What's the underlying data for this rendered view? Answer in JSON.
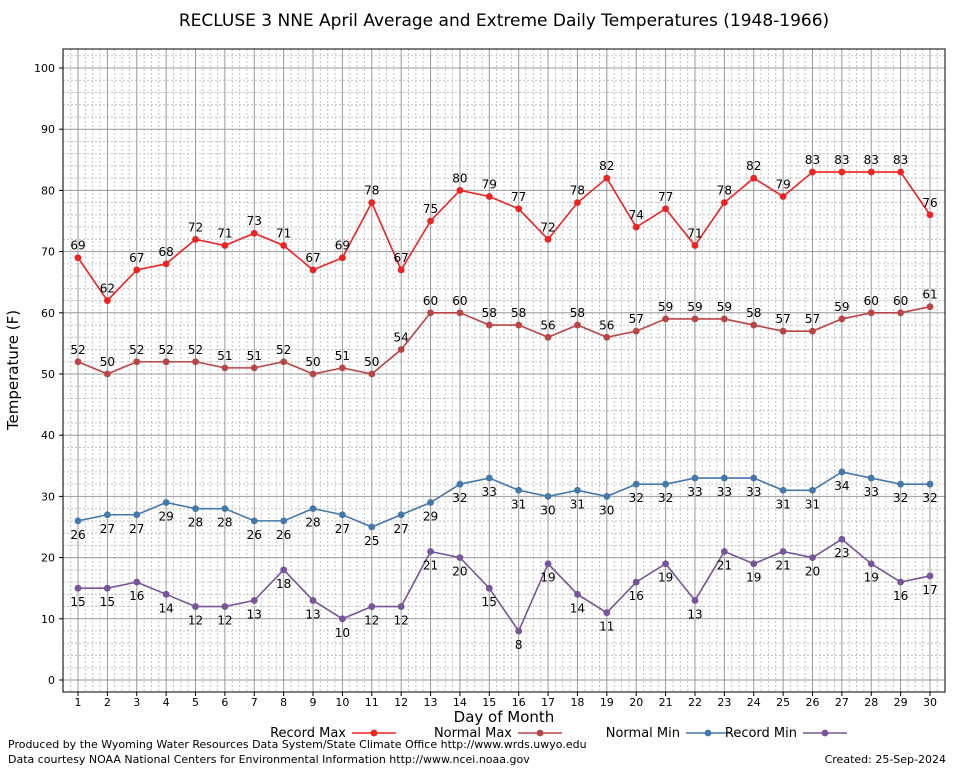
{
  "chart_data": {
    "type": "line",
    "title": "RECLUSE 3 NNE April Average and Extreme Daily Temperatures (1948-1966)",
    "xlabel": "Day of Month",
    "ylabel": "Temperature (F)",
    "ylim": [
      0,
      100
    ],
    "yticks": [
      0,
      10,
      20,
      30,
      40,
      50,
      60,
      70,
      80,
      90,
      100
    ],
    "x": [
      1,
      2,
      3,
      4,
      5,
      6,
      7,
      8,
      9,
      10,
      11,
      12,
      13,
      14,
      15,
      16,
      17,
      18,
      19,
      20,
      21,
      22,
      23,
      24,
      25,
      26,
      27,
      28,
      29,
      30
    ],
    "grid": true,
    "legend_position": "bottom",
    "series": [
      {
        "name": "Record Max",
        "color": "#ee2222",
        "values": [
          69,
          62,
          67,
          68,
          72,
          71,
          73,
          71,
          67,
          69,
          78,
          67,
          75,
          80,
          79,
          77,
          72,
          78,
          82,
          74,
          77,
          71,
          78,
          82,
          79,
          83,
          83,
          83,
          83,
          76
        ]
      },
      {
        "name": "Normal Max",
        "color": "#bb4444",
        "values": [
          52,
          50,
          52,
          52,
          52,
          51,
          51,
          52,
          50,
          51,
          50,
          54,
          60,
          60,
          58,
          58,
          56,
          58,
          56,
          57,
          59,
          59,
          59,
          58,
          57,
          57,
          59,
          60,
          60,
          61
        ]
      },
      {
        "name": "Normal Min",
        "color": "#4477aa",
        "values": [
          26,
          27,
          27,
          29,
          28,
          28,
          26,
          26,
          28,
          27,
          25,
          27,
          29,
          32,
          33,
          31,
          30,
          31,
          30,
          32,
          32,
          33,
          33,
          33,
          31,
          31,
          34,
          33,
          32,
          32
        ]
      },
      {
        "name": "Record Min",
        "color": "#775599",
        "values": [
          15,
          15,
          16,
          14,
          12,
          12,
          13,
          18,
          13,
          10,
          12,
          12,
          21,
          20,
          15,
          8,
          19,
          14,
          11,
          16,
          19,
          13,
          21,
          19,
          21,
          20,
          23,
          19,
          16,
          17
        ]
      }
    ]
  },
  "footer": {
    "produced_by": "Produced by the Wyoming Water Resources Data System/State Climate Office http://www.wrds.uwyo.edu",
    "data_courtesy": "Data courtesy NOAA National Centers for Environmental Information http://www.ncei.noaa.gov",
    "created": "Created:  25-Sep-2024"
  }
}
